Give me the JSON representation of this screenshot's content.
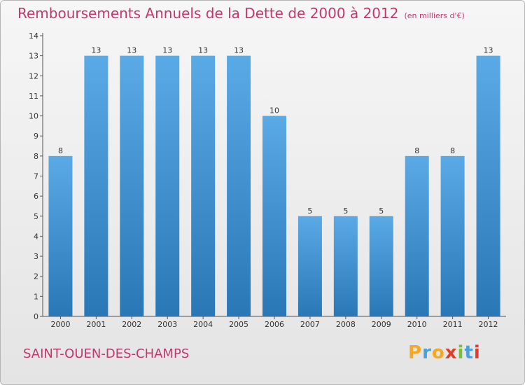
{
  "chart_data": {
    "type": "bar",
    "title": "Remboursements Annuels de la Dette de 2000 à 2012",
    "subtitle": "(en milliers d'€)",
    "categories": [
      "2000",
      "2001",
      "2002",
      "2003",
      "2004",
      "2005",
      "2006",
      "2007",
      "2008",
      "2009",
      "2010",
      "2011",
      "2012"
    ],
    "values": [
      8,
      13,
      13,
      13,
      13,
      13,
      10,
      5,
      5,
      5,
      8,
      8,
      13
    ],
    "ylim": [
      0,
      14
    ],
    "yticks": [
      "0",
      "1",
      "2",
      "3",
      "4",
      "5",
      "6",
      "7",
      "8",
      "9",
      "10",
      "11",
      "12",
      "13",
      "14"
    ],
    "grid": false,
    "bar_color_top": "#5aaae6",
    "bar_color_bottom": "#2a77b6"
  },
  "footer": {
    "city": "SAINT-OUEN-DES-CHAMPS",
    "logo_letters": [
      "P",
      "r",
      "o",
      "x",
      "i",
      "t",
      "i"
    ],
    "logo_colors": [
      "#f7a823",
      "#4aa0d8",
      "#f7a823",
      "#e23c2a",
      "#7cbd3a",
      "#4aa0d8",
      "#e23c2a"
    ]
  }
}
